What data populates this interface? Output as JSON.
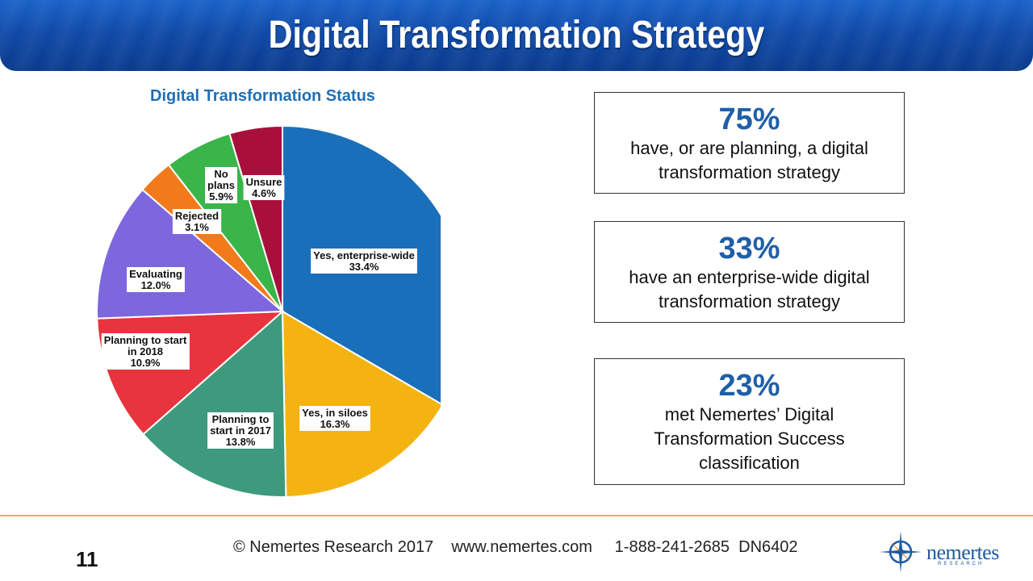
{
  "slide": {
    "title": "Digital Transformation Strategy",
    "number": "11",
    "footer": "© Nemertes Research 2017    www.nemertes.com     1-888-241-2685  DN6402"
  },
  "logo": {
    "word": "nemertes",
    "sub": "RESEARCH"
  },
  "chart_data": {
    "type": "pie",
    "title": "Digital Transformation Status",
    "start_angle_deg": 0,
    "direction": "clockwise",
    "slices": [
      {
        "label_lines": [
          "Yes, enterprise-wide"
        ],
        "value": 33.4,
        "value_text": "33.4%",
        "color": "#1a6fba"
      },
      {
        "label_lines": [
          "Yes, in siloes"
        ],
        "value": 16.3,
        "value_text": "16.3%",
        "color": "#f5b312"
      },
      {
        "label_lines": [
          "Planning to",
          "start in 2017"
        ],
        "value": 13.8,
        "value_text": "13.8%",
        "color": "#3d9a7d"
      },
      {
        "label_lines": [
          "Planning to start",
          "in 2018"
        ],
        "value": 10.9,
        "value_text": "10.9%",
        "color": "#e8343d"
      },
      {
        "label_lines": [
          "Evaluating"
        ],
        "value": 12.0,
        "value_text": "12.0%",
        "color": "#7d67df"
      },
      {
        "label_lines": [
          "Rejected"
        ],
        "value": 3.1,
        "value_text": "3.1%",
        "color": "#f27a1a"
      },
      {
        "label_lines": [
          "No",
          "plans"
        ],
        "value": 5.9,
        "value_text": "5.9%",
        "color": "#39b54a"
      },
      {
        "label_lines": [
          "Unsure"
        ],
        "value": 4.6,
        "value_text": "4.6%",
        "color": "#a8103b"
      }
    ]
  },
  "stats": [
    {
      "big": "75%",
      "text": "have, or are planning, a digital transformation strategy"
    },
    {
      "big": "33%",
      "text": "have an enterprise-wide digital transformation strategy"
    },
    {
      "big": "23%",
      "text": "met Nemertes’ Digital Transformation Success classification"
    }
  ]
}
